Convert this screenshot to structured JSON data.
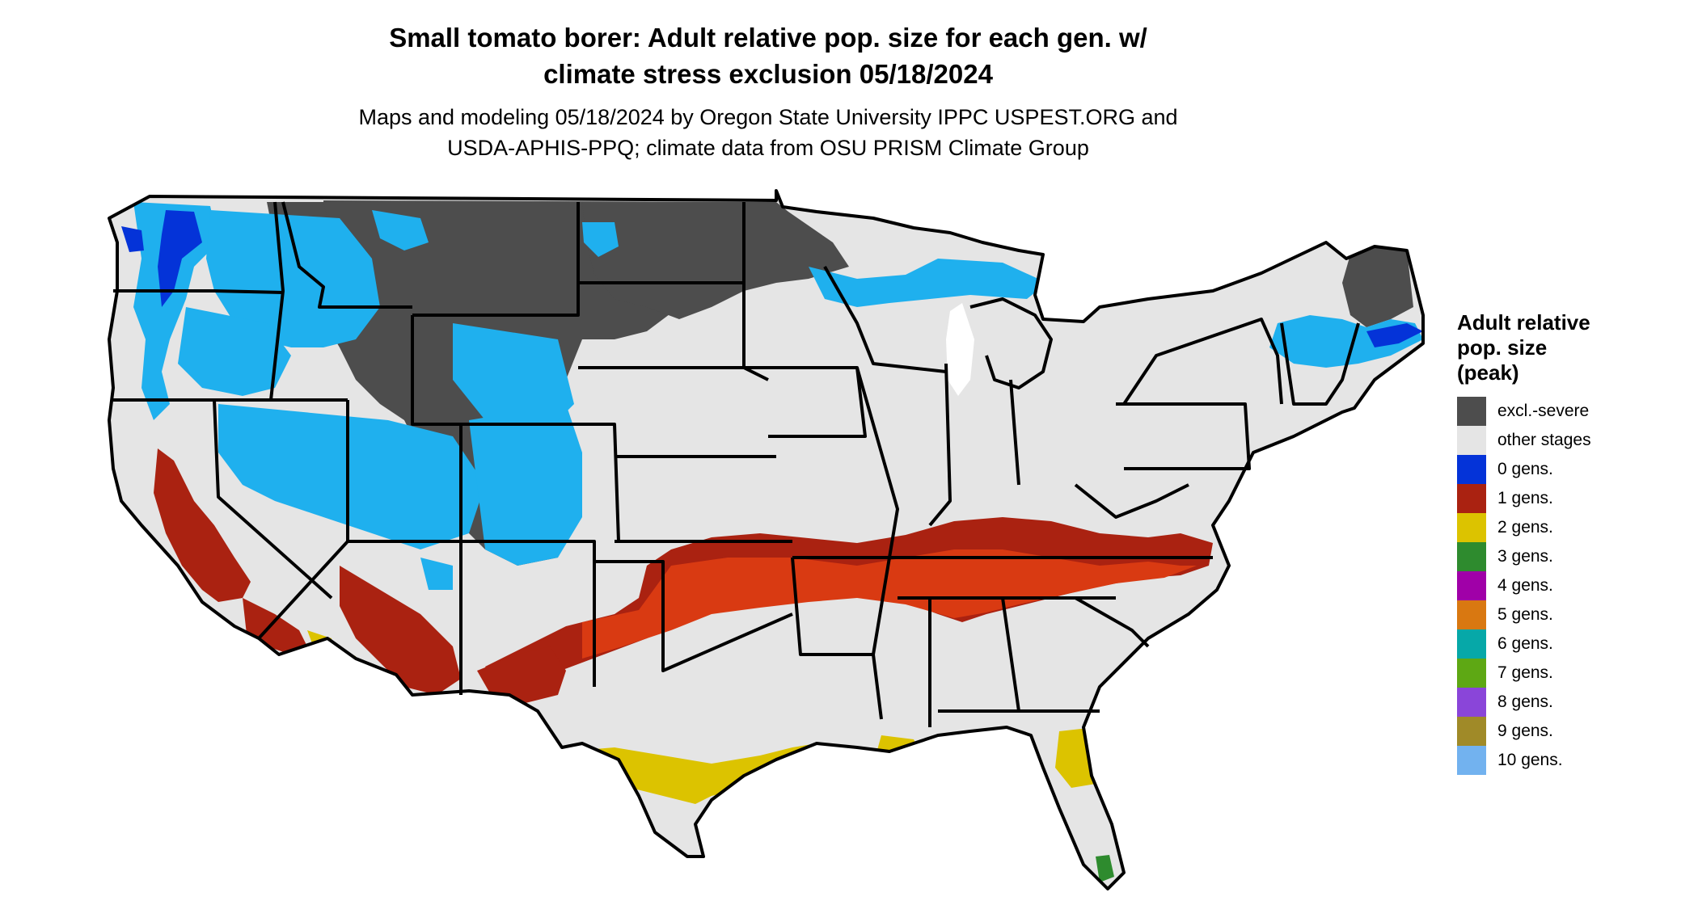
{
  "title_line1": "Small tomato borer: Adult relative pop. size for each gen. w/",
  "title_line2": "climate stress exclusion 05/18/2024",
  "subtitle_line1": "Maps and modeling 05/18/2024 by Oregon State University IPPC USPEST.ORG and",
  "subtitle_line2": "USDA-APHIS-PPQ; climate data from OSU PRISM Climate Group",
  "legend": {
    "title_line1": "Adult relative",
    "title_line2": "pop. size",
    "title_line3": "(peak)",
    "items": [
      {
        "label": "excl.-severe",
        "color": "#4d4d4d"
      },
      {
        "label": "other stages",
        "color": "#e5e5e5"
      },
      {
        "label": "0 gens.",
        "color": "#0433d8"
      },
      {
        "label": "1 gens.",
        "color": "#aa2211"
      },
      {
        "label": "2 gens.",
        "color": "#dcc300"
      },
      {
        "label": "3 gens.",
        "color": "#2e8b2e"
      },
      {
        "label": "4 gens.",
        "color": "#a000a8"
      },
      {
        "label": "5 gens.",
        "color": "#d97811"
      },
      {
        "label": "6 gens.",
        "color": "#06a8a8"
      },
      {
        "label": "7 gens.",
        "color": "#5ea814"
      },
      {
        "label": "8 gens.",
        "color": "#8a45d9"
      },
      {
        "label": "9 gens.",
        "color": "#a08a28"
      },
      {
        "label": "10 gens.",
        "color": "#72b2ef"
      }
    ]
  },
  "map_colors": {
    "excluded": "#4d4d4d",
    "other": "#e5e5e5",
    "light_blue": "#1fb0ee",
    "blue": "#0433d8",
    "red": "#aa2211",
    "orange_red": "#d93a12",
    "yellow": "#dcc300",
    "green": "#2e8b2e",
    "boundary": "#000000"
  }
}
